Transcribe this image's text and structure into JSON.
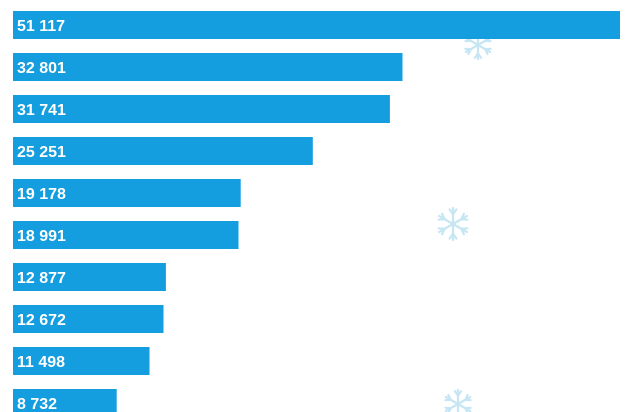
{
  "chart_data": {
    "type": "bar",
    "orientation": "horizontal",
    "title": "",
    "xlabel": "",
    "ylabel": "",
    "values": [
      51117,
      32801,
      31741,
      25251,
      19178,
      18991,
      12877,
      12672,
      11498,
      8732
    ],
    "labels": [
      "51 117",
      "32 801",
      "31 741",
      "25 251",
      "19 178",
      "18 991",
      "12 877",
      "12 672",
      "11 498",
      "8 732"
    ],
    "xlim": [
      0,
      51117
    ],
    "grid": false,
    "legend": "none"
  },
  "colors": {
    "bar": "#149ddf",
    "label": "#ffffff",
    "decoration": "#c7e6f3"
  },
  "decorations": {
    "icons": [
      "snowflake-icon",
      "snowflake-icon",
      "snowflake-icon"
    ]
  }
}
